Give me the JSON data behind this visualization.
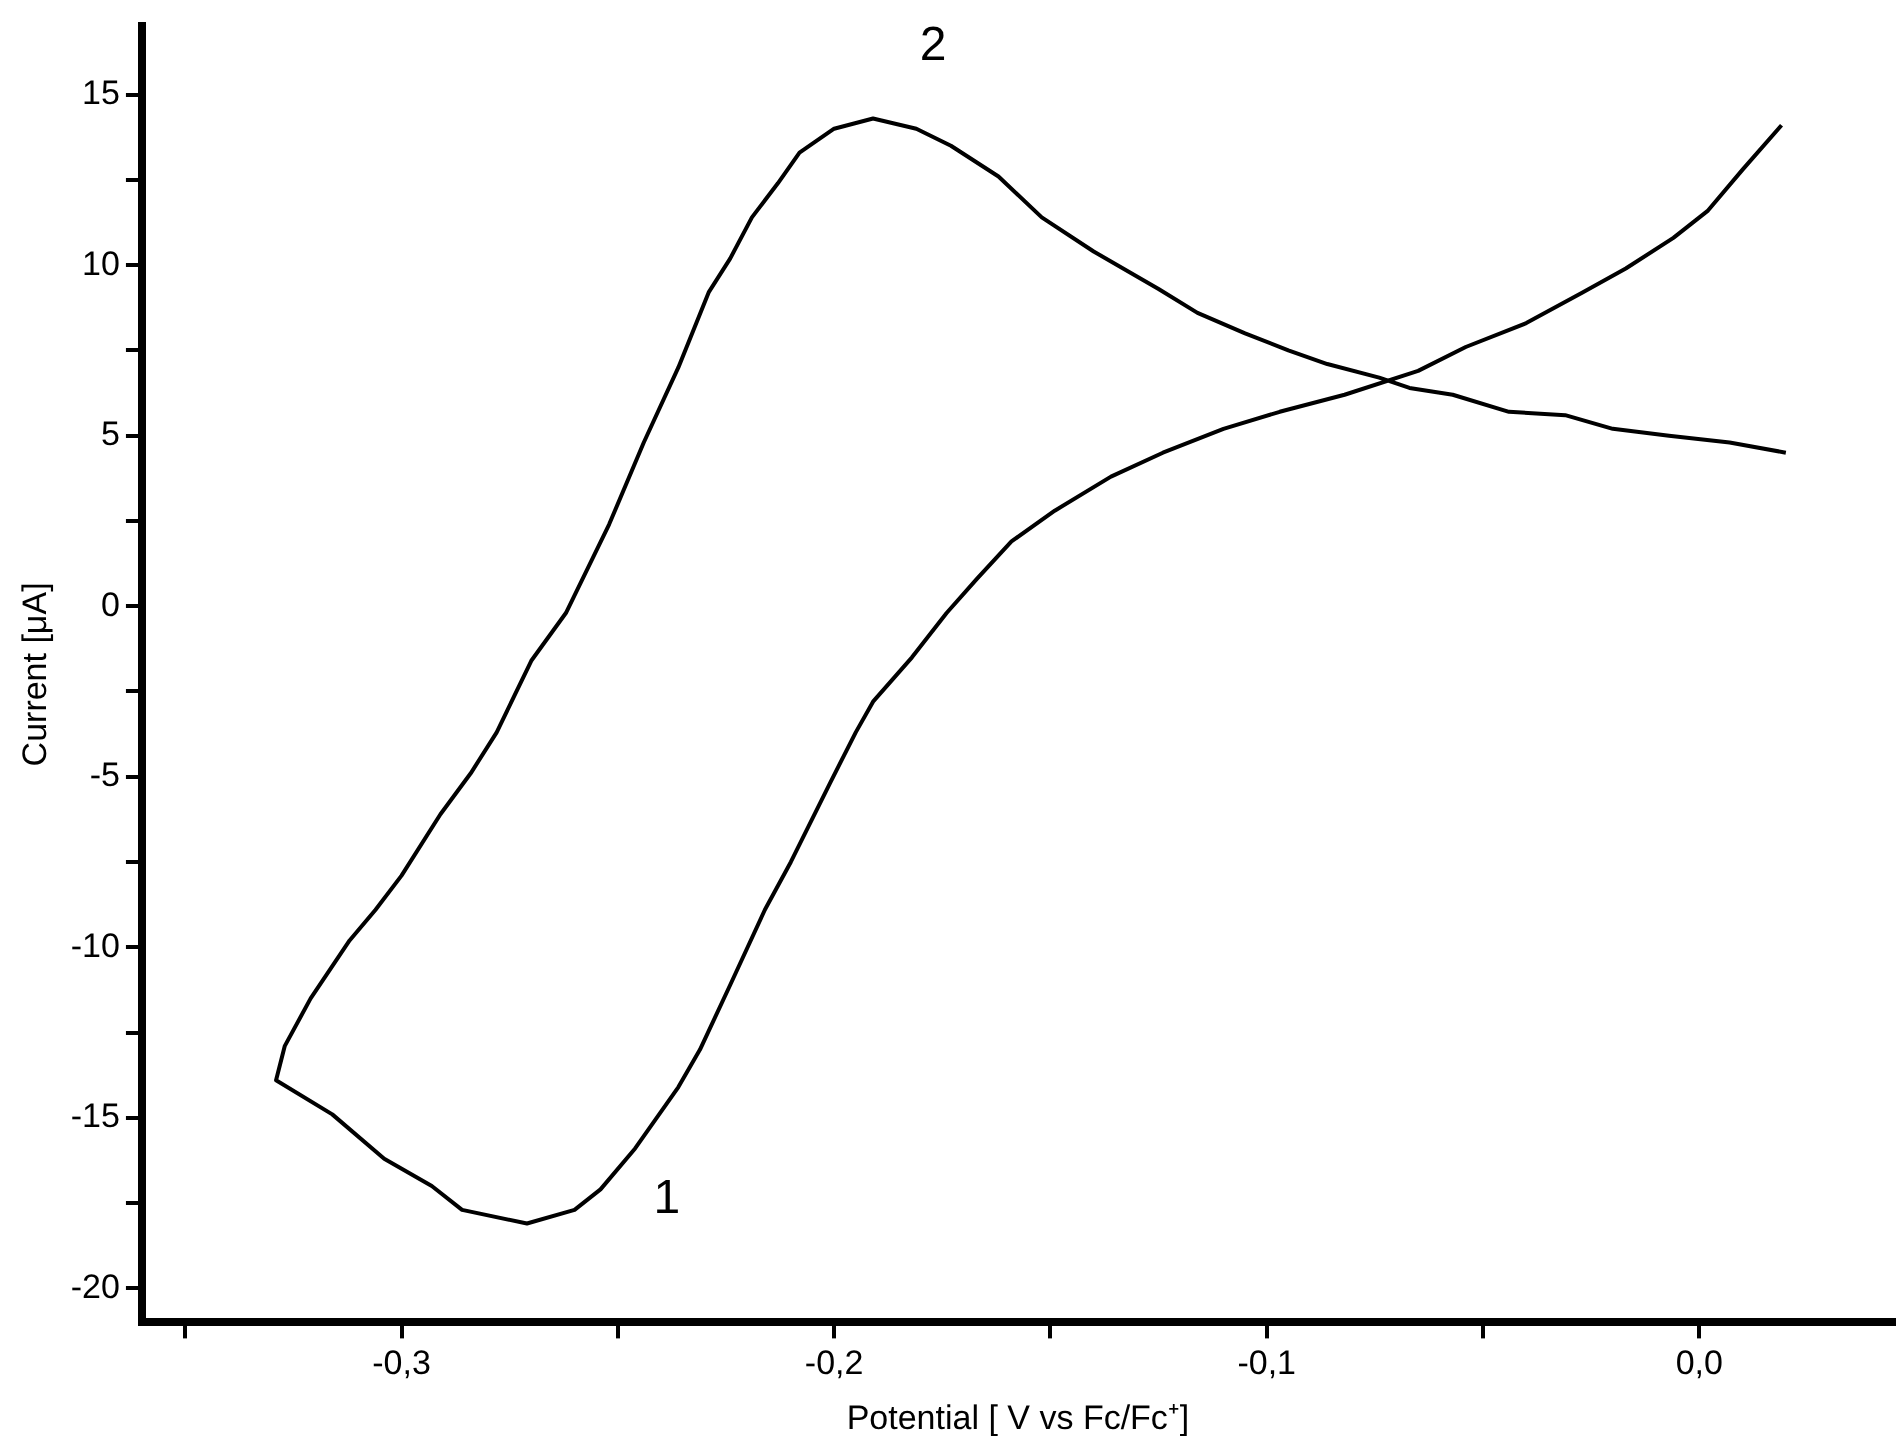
{
  "chart_data": {
    "type": "line",
    "xlabel": "Potential [ V vs Fc/Fc⁺]",
    "ylabel": "Current [μA]",
    "series": [
      {
        "color": "#000000",
        "x": [
          0.02,
          0.007,
          -0.007,
          -0.02,
          -0.031,
          -0.044,
          -0.057,
          -0.067,
          -0.074,
          -0.086,
          -0.095,
          -0.105,
          -0.116,
          -0.125,
          -0.14,
          -0.152,
          -0.162,
          -0.173,
          -0.181,
          -0.191,
          -0.2,
          -0.208,
          -0.213,
          -0.219,
          -0.224,
          -0.229,
          -0.236,
          -0.244,
          -0.252,
          -0.262,
          -0.27,
          -0.278,
          -0.284,
          -0.291,
          -0.3,
          -0.306,
          -0.312,
          -0.321,
          -0.327,
          -0.329,
          -0.316,
          -0.304,
          -0.293,
          -0.286,
          -0.271,
          -0.26,
          -0.254,
          -0.246,
          -0.236,
          -0.231,
          -0.224,
          -0.216,
          -0.21,
          -0.201,
          -0.195,
          -0.191,
          -0.182,
          -0.174,
          -0.167,
          -0.159,
          -0.149,
          -0.136,
          -0.124,
          -0.11,
          -0.097,
          -0.082,
          -0.065,
          -0.054,
          -0.04,
          -0.027,
          -0.017,
          -0.006,
          0.002,
          0.01,
          0.019
        ],
        "values": [
          4.5,
          4.8,
          5.0,
          5.2,
          5.6,
          5.7,
          6.2,
          6.4,
          6.7,
          7.1,
          7.5,
          8.0,
          8.6,
          9.3,
          10.4,
          11.4,
          12.6,
          13.5,
          14.0,
          14.3,
          14.0,
          13.3,
          12.4,
          11.4,
          10.2,
          9.2,
          7.0,
          4.8,
          2.4,
          -0.2,
          -1.6,
          -3.7,
          -4.9,
          -6.1,
          -7.9,
          -8.9,
          -9.8,
          -11.5,
          -12.9,
          -13.9,
          -14.9,
          -16.2,
          -17.0,
          -17.7,
          -18.1,
          -17.7,
          -17.1,
          -15.9,
          -14.1,
          -13.0,
          -11.1,
          -8.9,
          -7.5,
          -5.2,
          -3.7,
          -2.8,
          -1.5,
          -0.2,
          0.8,
          1.9,
          2.8,
          3.8,
          4.5,
          5.2,
          5.7,
          6.2,
          6.9,
          7.6,
          8.3,
          9.2,
          9.9,
          10.8,
          11.6,
          12.8,
          14.1
        ]
      }
    ],
    "annotations": [
      {
        "text": "1",
        "x": -0.271,
        "y": -18.1
      },
      {
        "text": "2",
        "x": -0.191,
        "y": 14.3
      }
    ],
    "xlim": [
      -0.36,
      0.045
    ],
    "ylim": [
      -21,
      17
    ],
    "xticks": [
      {
        "value": -0.35,
        "label": null
      },
      {
        "value": -0.3,
        "label": "-0,3"
      },
      {
        "value": -0.25,
        "label": null
      },
      {
        "value": -0.2,
        "label": "-0,2"
      },
      {
        "value": -0.15,
        "label": null
      },
      {
        "value": -0.1,
        "label": "-0,1"
      },
      {
        "value": -0.05,
        "label": null
      },
      {
        "value": 0,
        "label": "0,0"
      }
    ],
    "yticks": [
      -20,
      {
        "value": -17.5,
        "label": null
      },
      -15,
      {
        "value": -12.5,
        "label": null
      },
      -10,
      {
        "value": -7.5,
        "label": null
      },
      -5,
      {
        "value": -2.5,
        "label": null
      },
      0,
      {
        "value": 2.5,
        "label": null
      },
      5,
      {
        "value": 7.5,
        "label": null
      },
      10,
      {
        "value": 12.5,
        "label": null
      },
      15
    ],
    "grid": false,
    "legend": false,
    "marker": "none",
    "line_style": "solid"
  }
}
